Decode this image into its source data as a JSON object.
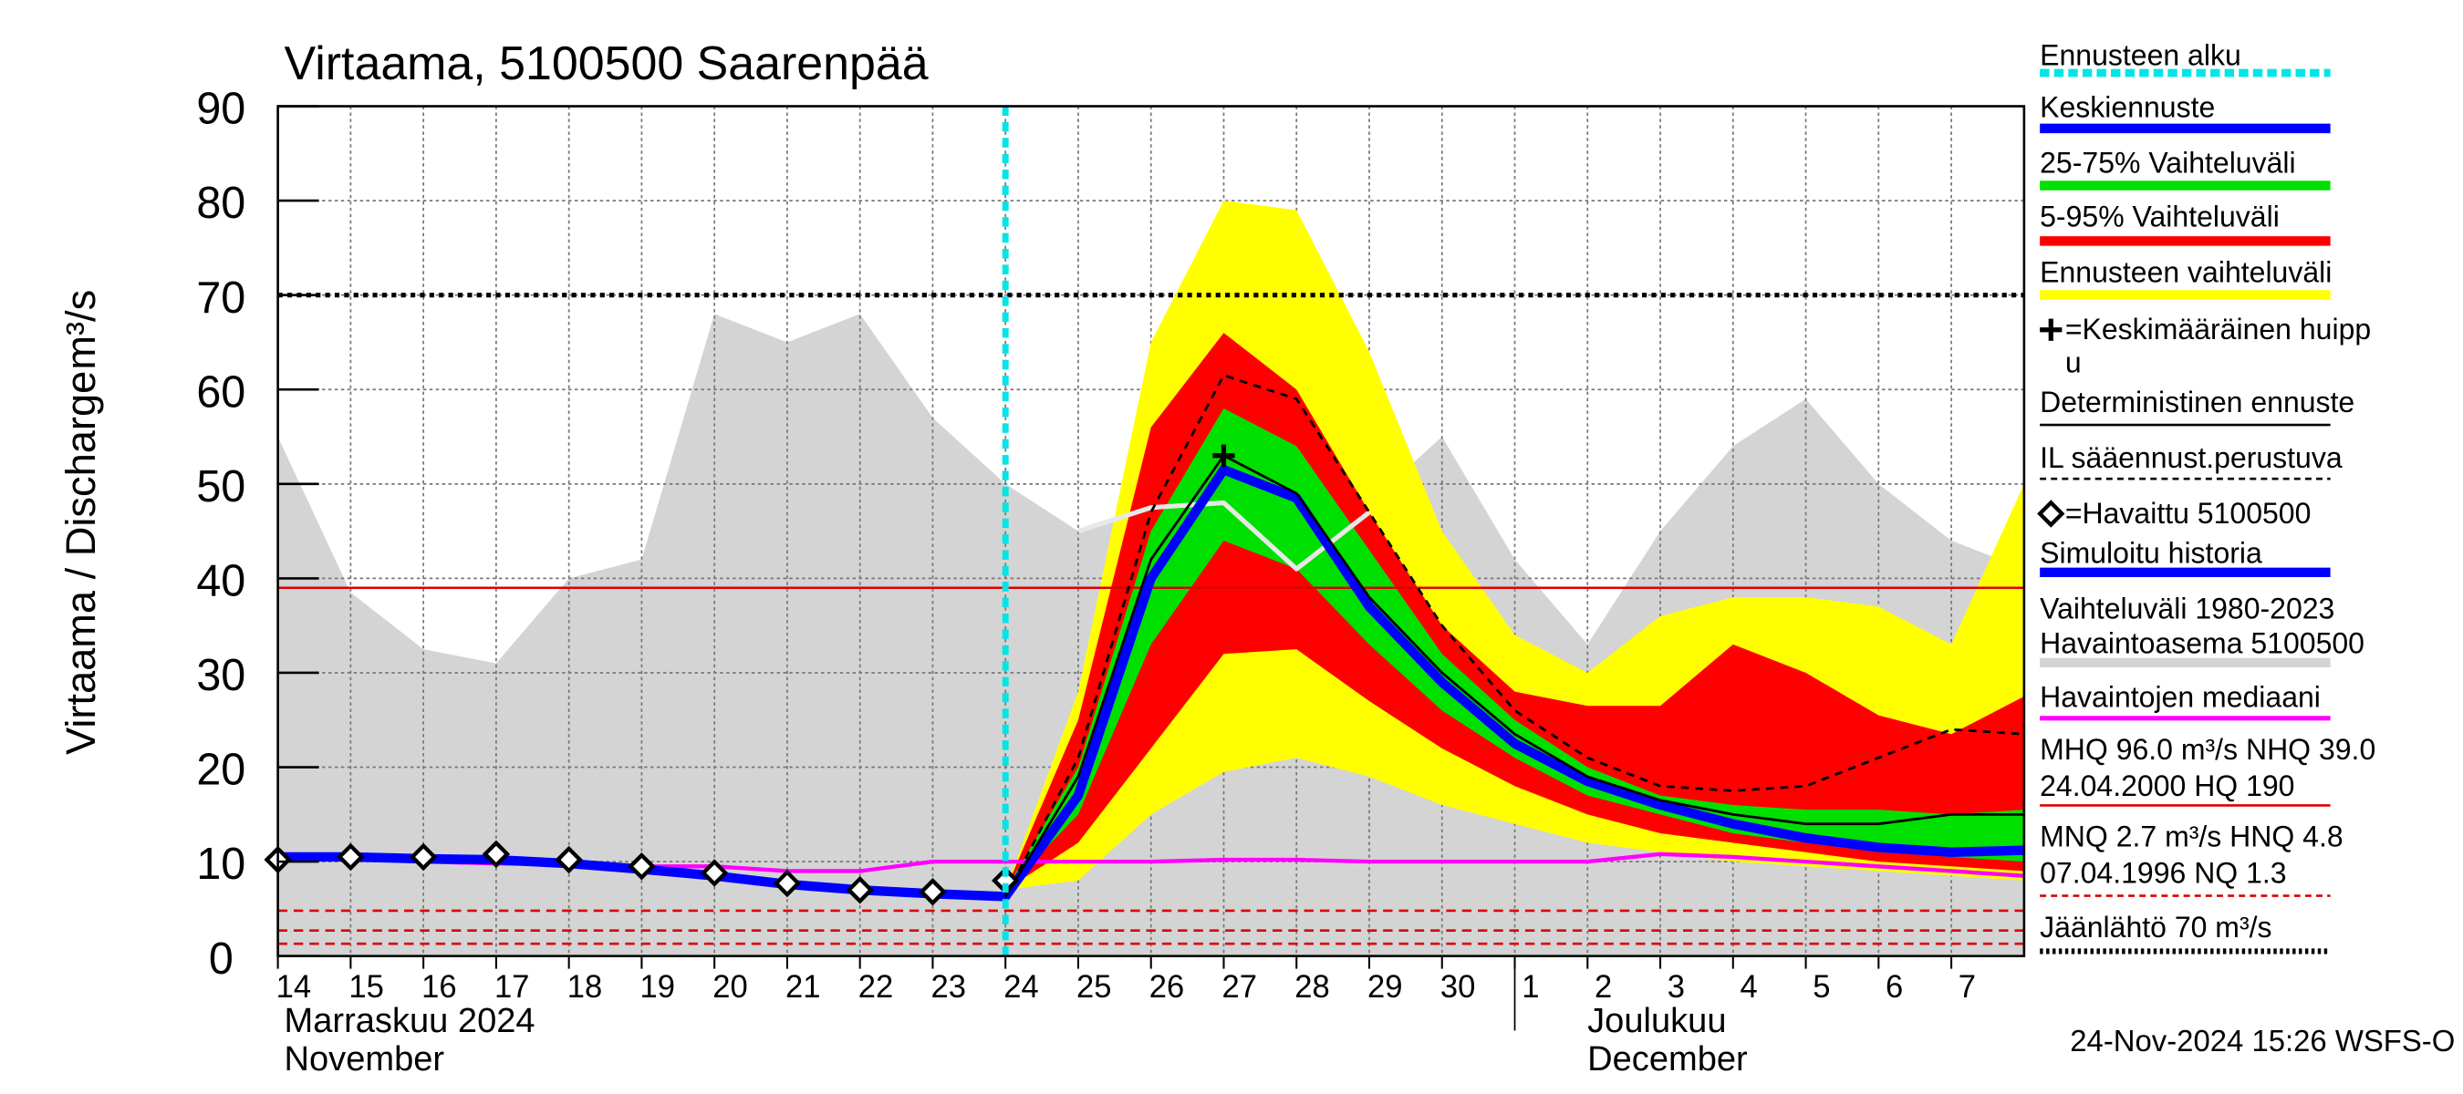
{
  "chart_data": {
    "type": "forecast",
    "title": "Virtaama, 5100500 Saarenpää",
    "y_label": "Virtaama / Discharge",
    "y_unit": "m³/s",
    "categories": [
      "14",
      "15",
      "16",
      "17",
      "18",
      "19",
      "20",
      "21",
      "22",
      "23",
      "24",
      "25",
      "26",
      "27",
      "28",
      "29",
      "30",
      "1",
      "2",
      "3",
      "4",
      "5",
      "6",
      "7",
      null
    ],
    "month_labels": [
      [
        "Marraskuu 2024",
        "November"
      ],
      [
        "Joulukuu",
        "December"
      ]
    ],
    "ylim": [
      0,
      90
    ],
    "yticks": [
      0,
      10,
      20,
      30,
      40,
      50,
      60,
      70,
      80,
      90
    ],
    "grid": true,
    "forecast_start": 10,
    "series": [
      {
        "kind": "area",
        "color": "#d4d4d4",
        "values": [
          55,
          38.5,
          32.5,
          31,
          40,
          42,
          68,
          65,
          68,
          57,
          50,
          45,
          47,
          49,
          43,
          48,
          55,
          42,
          33,
          45,
          54,
          59,
          50,
          44,
          41
        ]
      },
      {
        "kind": "band",
        "color": "#ffff00",
        "low": [
          null,
          null,
          null,
          null,
          null,
          null,
          null,
          null,
          null,
          null,
          7,
          8,
          15,
          19.5,
          21,
          19,
          16,
          14,
          12,
          11,
          10,
          9.5,
          9,
          8.5,
          8
        ],
        "high": [
          null,
          null,
          null,
          null,
          null,
          null,
          null,
          null,
          null,
          null,
          7,
          28,
          65,
          80,
          79,
          64,
          45,
          34,
          30,
          36,
          38,
          38,
          37,
          33,
          50
        ]
      },
      {
        "kind": "band",
        "color": "#ff0000",
        "low": [
          null,
          null,
          null,
          null,
          null,
          null,
          null,
          null,
          null,
          null,
          7,
          12,
          22,
          32,
          32.5,
          27,
          22,
          18,
          15,
          13,
          12,
          11,
          10,
          9.5,
          9
        ],
        "high": [
          null,
          null,
          null,
          null,
          null,
          null,
          null,
          null,
          null,
          null,
          7,
          25,
          56,
          66,
          60,
          47,
          35,
          28,
          26.5,
          26.5,
          33,
          30,
          25.5,
          23.5,
          27.5
        ]
      },
      {
        "kind": "band",
        "color": "#00e000",
        "low": [
          null,
          null,
          null,
          null,
          null,
          null,
          null,
          null,
          null,
          null,
          7,
          15,
          33,
          44,
          41,
          33,
          26,
          21,
          17,
          15,
          13,
          12,
          11,
          10.5,
          10
        ],
        "high": [
          null,
          null,
          null,
          null,
          null,
          null,
          null,
          null,
          null,
          null,
          7,
          20,
          45,
          58,
          54,
          43,
          32,
          25,
          20,
          17,
          16,
          15.5,
          15.5,
          15,
          15.5
        ]
      },
      {
        "kind": "line",
        "color": "#e8e8e8",
        "width": 3,
        "values": [
          null,
          null,
          null,
          null,
          null,
          null,
          null,
          null,
          null,
          null,
          null,
          45,
          47.5,
          48,
          41,
          47,
          null,
          null,
          null,
          null,
          null,
          null,
          null,
          null,
          null
        ]
      },
      {
        "kind": "line",
        "color": "#ff00ff",
        "width": 2.5,
        "values": [
          10.5,
          10.3,
          10,
          9.8,
          9.7,
          9.5,
          9.5,
          9,
          9,
          10,
          10,
          10,
          10,
          10.2,
          10.2,
          10,
          10,
          10,
          10,
          10.8,
          10.5,
          10,
          9.5,
          9,
          8.5
        ]
      },
      {
        "kind": "line",
        "color": "#0000ff",
        "width": 6,
        "values": [
          10.5,
          10.5,
          10.3,
          10.2,
          9.8,
          9.2,
          8.5,
          7.6,
          7,
          6.6,
          6.3,
          17,
          40,
          51.5,
          48.5,
          37,
          29,
          22.5,
          18.5,
          16,
          14,
          12.5,
          11.5,
          11,
          11.2
        ]
      },
      {
        "kind": "line",
        "color": "#000000",
        "width": 1.6,
        "values": [
          null,
          null,
          null,
          null,
          null,
          null,
          null,
          null,
          null,
          null,
          6.3,
          19,
          42,
          53,
          49,
          38,
          30,
          23.5,
          19,
          16.5,
          15,
          14,
          14,
          15,
          15
        ]
      },
      {
        "kind": "line",
        "color": "#000000",
        "width": 1.6,
        "dashed": true,
        "values": [
          null,
          null,
          null,
          null,
          null,
          null,
          null,
          null,
          null,
          null,
          6.3,
          21,
          47,
          61.5,
          59,
          47,
          35,
          26,
          21,
          18,
          17.5,
          18,
          21,
          24,
          23.5
        ]
      },
      {
        "kind": "diamonds",
        "color": "#000000",
        "values": [
          10.2,
          10.5,
          10.5,
          10.8,
          10.2,
          9.5,
          8.8,
          7.7,
          7,
          6.8,
          8,
          null,
          null,
          null,
          null,
          null,
          null,
          null,
          null,
          null,
          null,
          null,
          null,
          null,
          null
        ]
      },
      {
        "kind": "cross",
        "color": "#000000",
        "values": [
          null,
          null,
          null,
          null,
          null,
          null,
          null,
          null,
          null,
          null,
          null,
          null,
          null,
          53,
          null,
          null,
          null,
          null,
          null,
          null,
          null,
          null,
          null,
          null,
          null
        ]
      }
    ],
    "reference_lines": [
      {
        "value": 70,
        "color": "#000000",
        "style": "dotted"
      },
      {
        "value": 39,
        "color": "#dd0000",
        "style": "solid"
      },
      {
        "value": 4.8,
        "color": "#dd0000",
        "style": "dashed"
      },
      {
        "value": 2.7,
        "color": "#dd0000",
        "style": "dashed"
      },
      {
        "value": 1.3,
        "color": "#dd0000",
        "style": "dashed"
      }
    ],
    "legend": [
      {
        "text": [
          "Ennusteen alku"
        ],
        "color": "#00e5e5",
        "style": "dotted"
      },
      {
        "text": [
          "Keskiennuste"
        ],
        "color": "#0000ff",
        "style": "thick"
      },
      {
        "text": [
          "25-75% Vaihteluväli"
        ],
        "color": "#00e000",
        "style": "thick"
      },
      {
        "text": [
          "5-95% Vaihteluväli"
        ],
        "color": "#ff0000",
        "style": "thick"
      },
      {
        "text": [
          "Ennusteen vaihteluväli"
        ],
        "color": "#ffff00",
        "style": "thick"
      },
      {
        "text": [
          "=Keskimääräinen huipp",
          "u"
        ],
        "marker": "cross"
      },
      {
        "text": [
          "Deterministinen ennuste"
        ],
        "color": "#000000",
        "style": "thin"
      },
      {
        "text": [
          "IL sääennust.perustuva"
        ],
        "color": "#000000",
        "style": "dashed"
      },
      {
        "text": [
          "=Havaittu 5100500"
        ],
        "marker": "diamond"
      },
      {
        "text": [
          "Simuloitu historia"
        ],
        "color": "#0000ff",
        "style": "thick"
      },
      {
        "text": [
          "Vaihteluväli 1980-2023",
          " Havaintoasema 5100500"
        ],
        "color": "#d4d4d4",
        "style": "thick"
      },
      {
        "text": [
          "Havaintojen mediaani"
        ],
        "color": "#ff00ff",
        "style": "medium"
      },
      {
        "text": [
          "MHQ 96.0 m³/s NHQ 39.0",
          "24.04.2000 HQ  190"
        ],
        "color": "#dd0000",
        "style": "thin"
      },
      {
        "text": [
          "MNQ  2.7 m³/s HNQ  4.8",
          "07.04.1996 NQ  1.3"
        ],
        "color": "#dd0000",
        "style": "dashed"
      },
      {
        "text": [
          "Jäänlähtö 70 m³/s"
        ],
        "color": "#000000",
        "style": "dotted"
      }
    ],
    "footer": "24-Nov-2024 15:26 WSFS-O"
  }
}
